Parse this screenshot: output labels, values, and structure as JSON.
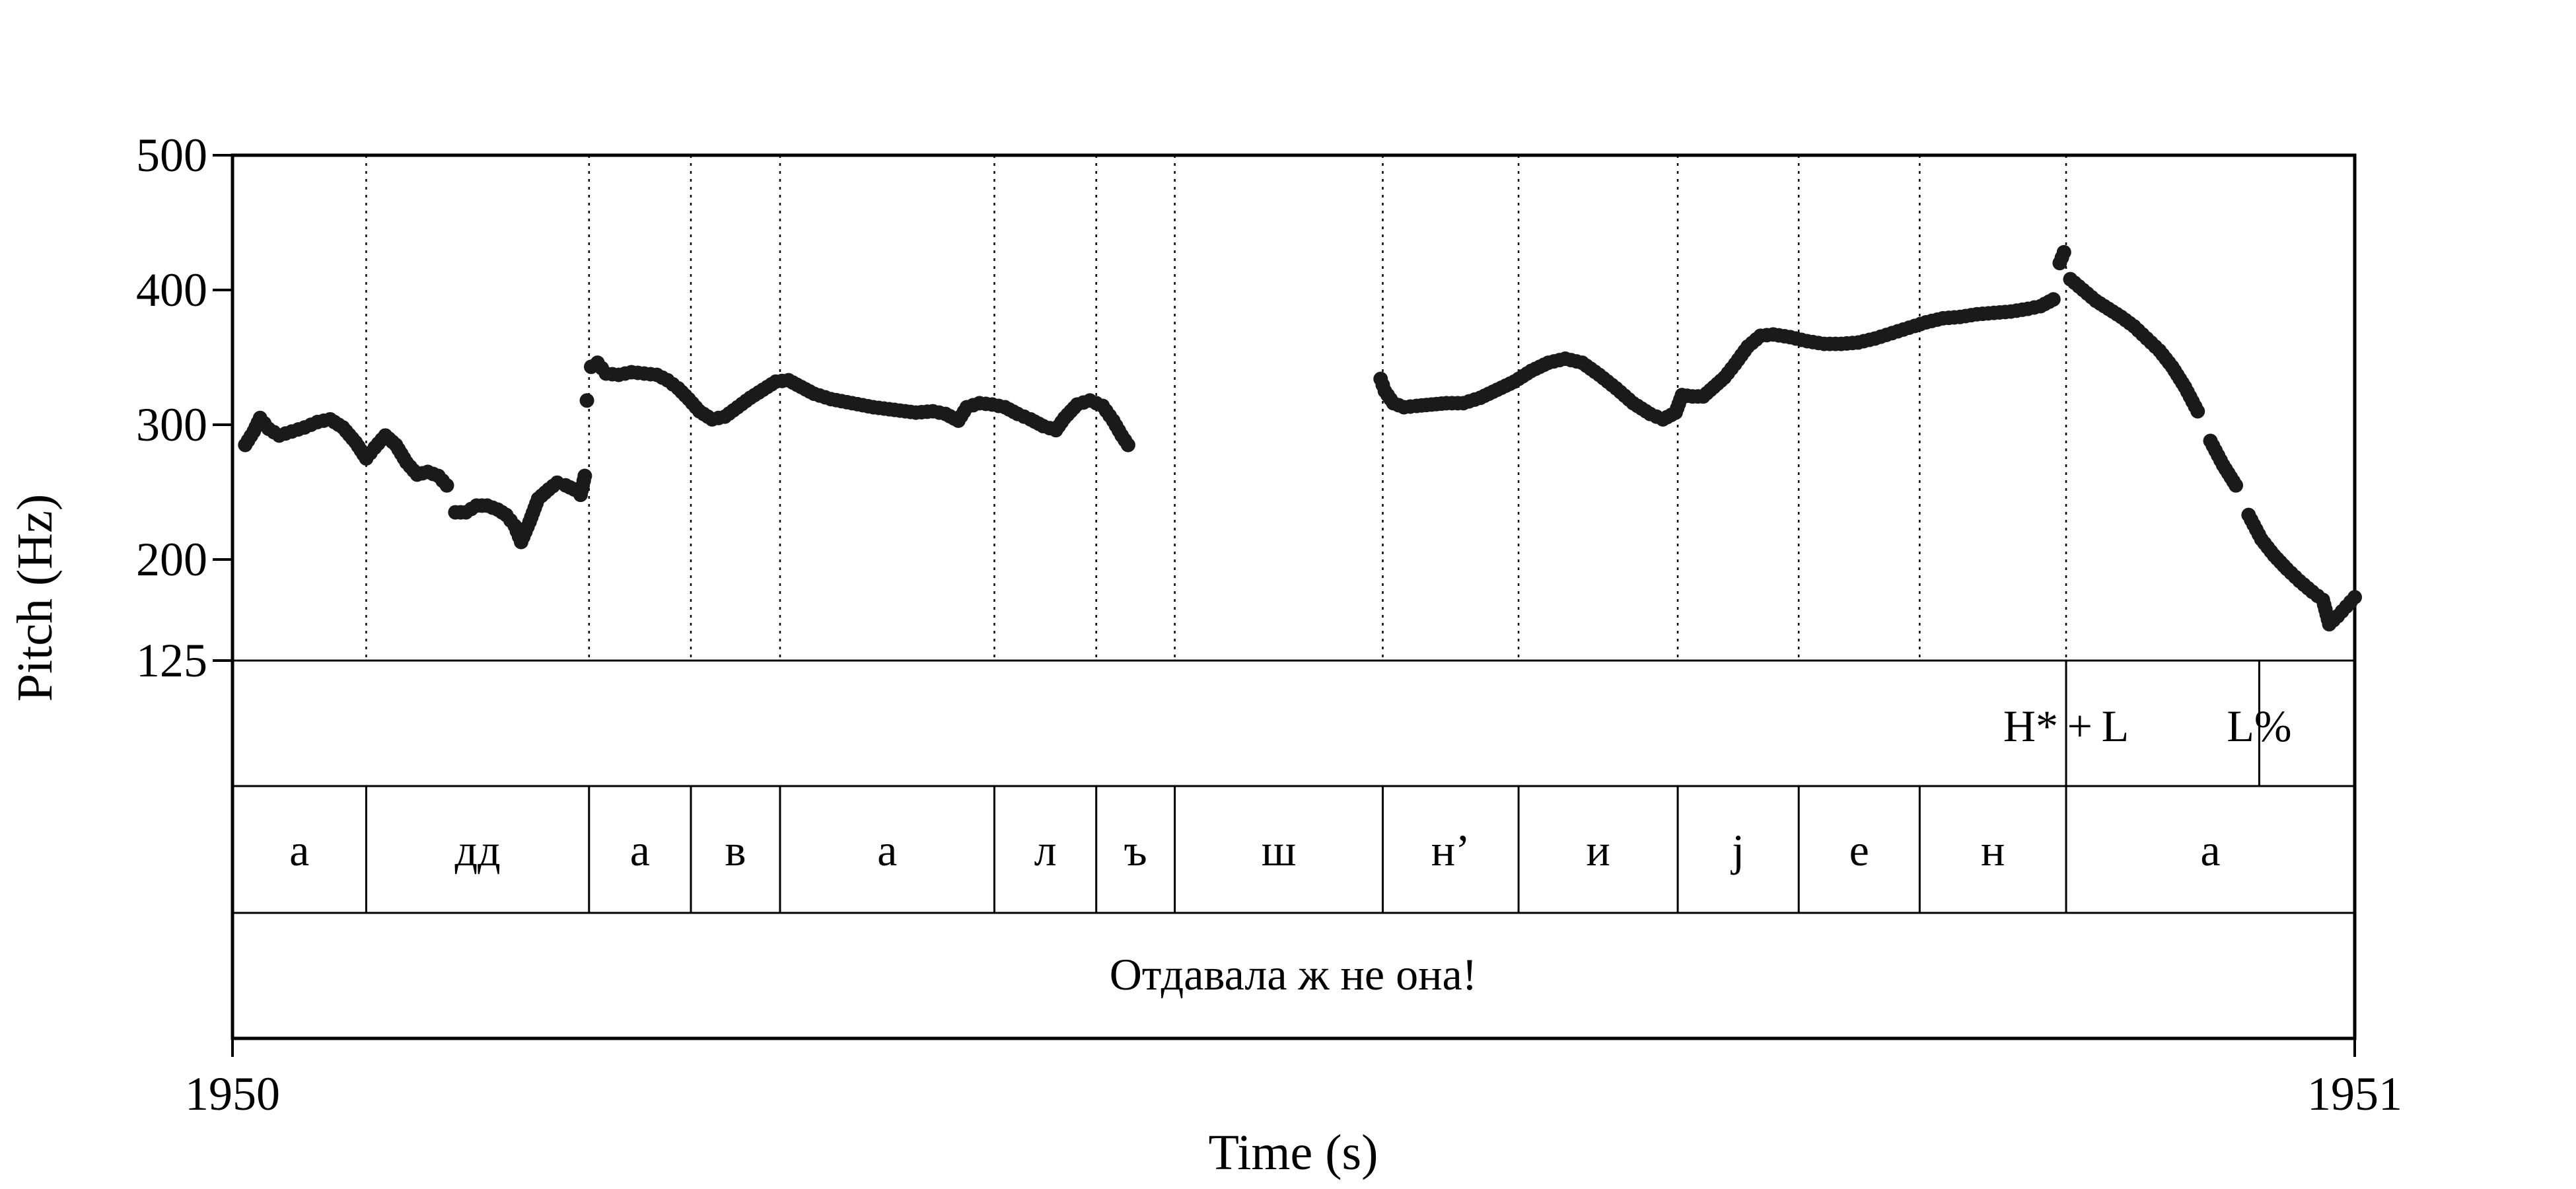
{
  "chart_data": {
    "type": "scatter",
    "xlabel": "Time (s)",
    "ylabel": "Pitch (Hz)",
    "xlim": [
      1950,
      1951
    ],
    "ylim": [
      125,
      500
    ],
    "x_tick_labels": [
      "1950",
      "1951"
    ],
    "y_tick_values": [
      125,
      200,
      300,
      400,
      500
    ],
    "y_tick_labels": [
      "125",
      "200",
      "300",
      "400",
      "500"
    ],
    "grid": "dotted vertical lines at segment boundaries",
    "tone_tier": [
      {
        "label": "H* + L",
        "t": 1950.864
      },
      {
        "label": "L%",
        "t": 1950.955
      }
    ],
    "segment_tier": [
      {
        "label": "а",
        "start": 1950.0,
        "end": 1950.063
      },
      {
        "label": "дд",
        "start": 1950.063,
        "end": 1950.168
      },
      {
        "label": "а",
        "start": 1950.168,
        "end": 1950.216
      },
      {
        "label": "в",
        "start": 1950.216,
        "end": 1950.258
      },
      {
        "label": "а",
        "start": 1950.258,
        "end": 1950.359
      },
      {
        "label": "л",
        "start": 1950.359,
        "end": 1950.407
      },
      {
        "label": "ъ",
        "start": 1950.407,
        "end": 1950.444
      },
      {
        "label": "ш",
        "start": 1950.444,
        "end": 1950.542
      },
      {
        "label": "н’",
        "start": 1950.542,
        "end": 1950.606
      },
      {
        "label": "и",
        "start": 1950.606,
        "end": 1950.681
      },
      {
        "label": "j",
        "start": 1950.681,
        "end": 1950.738
      },
      {
        "label": "е",
        "start": 1950.738,
        "end": 1950.795
      },
      {
        "label": "н",
        "start": 1950.795,
        "end": 1950.864
      },
      {
        "label": "а",
        "start": 1950.864,
        "end": 1951.0
      }
    ],
    "sentence_tier": "Отдавала ж не она!",
    "series": [
      {
        "points": [
          [
            1950.006,
            285
          ],
          [
            1950.01,
            295
          ],
          [
            1950.013,
            305
          ],
          [
            1950.017,
            297
          ],
          [
            1950.022,
            292
          ],
          [
            1950.028,
            295
          ],
          [
            1950.034,
            298
          ],
          [
            1950.04,
            302
          ],
          [
            1950.046,
            304
          ],
          [
            1950.052,
            298
          ],
          [
            1950.058,
            287
          ],
          [
            1950.063,
            275
          ],
          [
            1950.067,
            283
          ],
          [
            1950.072,
            292
          ],
          [
            1950.077,
            285
          ],
          [
            1950.082,
            272
          ],
          [
            1950.087,
            263
          ],
          [
            1950.092,
            265
          ],
          [
            1950.097,
            262
          ],
          [
            1950.101,
            255
          ],
          [
            1950.105,
            235
          ],
          [
            1950.11,
            235
          ],
          [
            1950.115,
            240
          ],
          [
            1950.12,
            240
          ],
          [
            1950.125,
            237
          ],
          [
            1950.129,
            233
          ],
          [
            1950.133,
            225
          ],
          [
            1950.136,
            213
          ],
          [
            1950.14,
            228
          ],
          [
            1950.144,
            245
          ],
          [
            1950.149,
            252
          ],
          [
            1950.153,
            257
          ],
          [
            1950.157,
            255
          ],
          [
            1950.161,
            252
          ],
          [
            1950.164,
            248
          ],
          [
            1950.166,
            262
          ],
          [
            1950.167,
            318
          ],
          [
            1950.169,
            343
          ],
          [
            1950.172,
            346
          ],
          [
            1950.176,
            338
          ],
          [
            1950.182,
            337
          ],
          [
            1950.188,
            339
          ],
          [
            1950.194,
            338
          ],
          [
            1950.2,
            337
          ],
          [
            1950.205,
            333
          ],
          [
            1950.21,
            327
          ],
          [
            1950.215,
            319
          ],
          [
            1950.22,
            310
          ],
          [
            1950.226,
            304
          ],
          [
            1950.232,
            306
          ],
          [
            1950.238,
            313
          ],
          [
            1950.244,
            320
          ],
          [
            1950.25,
            326
          ],
          [
            1950.256,
            332
          ],
          [
            1950.262,
            333
          ],
          [
            1950.268,
            328
          ],
          [
            1950.274,
            323
          ],
          [
            1950.282,
            319
          ],
          [
            1950.292,
            316
          ],
          [
            1950.302,
            313
          ],
          [
            1950.312,
            311
          ],
          [
            1950.322,
            309
          ],
          [
            1950.33,
            310
          ],
          [
            1950.336,
            308
          ],
          [
            1950.342,
            303
          ],
          [
            1950.346,
            313
          ],
          [
            1950.352,
            316
          ],
          [
            1950.358,
            315
          ],
          [
            1950.364,
            313
          ],
          [
            1950.37,
            308
          ],
          [
            1950.376,
            304
          ],
          [
            1950.382,
            299
          ],
          [
            1950.388,
            296
          ],
          [
            1950.392,
            305
          ],
          [
            1950.398,
            315
          ],
          [
            1950.404,
            318
          ],
          [
            1950.41,
            314
          ],
          [
            1950.415,
            303
          ],
          [
            1950.419,
            292
          ],
          [
            1950.422,
            285
          ],
          [
            1950.541,
            334
          ],
          [
            1950.543,
            325
          ],
          [
            1950.547,
            316
          ],
          [
            1950.552,
            313
          ],
          [
            1950.558,
            314
          ],
          [
            1950.565,
            315
          ],
          [
            1950.572,
            316
          ],
          [
            1950.58,
            316
          ],
          [
            1950.588,
            320
          ],
          [
            1950.596,
            326
          ],
          [
            1950.604,
            332
          ],
          [
            1950.612,
            340
          ],
          [
            1950.62,
            346
          ],
          [
            1950.628,
            349
          ],
          [
            1950.636,
            346
          ],
          [
            1950.644,
            337
          ],
          [
            1950.652,
            327
          ],
          [
            1950.66,
            316
          ],
          [
            1950.668,
            308
          ],
          [
            1950.674,
            304
          ],
          [
            1950.68,
            309
          ],
          [
            1950.683,
            322
          ],
          [
            1950.688,
            321
          ],
          [
            1950.693,
            321
          ],
          [
            1950.698,
            328
          ],
          [
            1950.703,
            335
          ],
          [
            1950.708,
            345
          ],
          [
            1950.714,
            358
          ],
          [
            1950.72,
            366
          ],
          [
            1950.726,
            367
          ],
          [
            1950.734,
            365
          ],
          [
            1950.742,
            362
          ],
          [
            1950.75,
            360
          ],
          [
            1950.758,
            360
          ],
          [
            1950.766,
            361
          ],
          [
            1950.774,
            364
          ],
          [
            1950.782,
            368
          ],
          [
            1950.79,
            372
          ],
          [
            1950.798,
            376
          ],
          [
            1950.806,
            379
          ],
          [
            1950.814,
            380
          ],
          [
            1950.822,
            382
          ],
          [
            1950.83,
            383
          ],
          [
            1950.838,
            384
          ],
          [
            1950.846,
            386
          ],
          [
            1950.852,
            388
          ],
          [
            1950.858,
            393
          ],
          [
            1950.861,
            420
          ],
          [
            1950.863,
            428
          ],
          [
            1950.866,
            408
          ],
          [
            1950.872,
            400
          ],
          [
            1950.878,
            392
          ],
          [
            1950.884,
            386
          ],
          [
            1950.89,
            380
          ],
          [
            1950.896,
            373
          ],
          [
            1950.902,
            364
          ],
          [
            1950.908,
            355
          ],
          [
            1950.914,
            343
          ],
          [
            1950.92,
            328
          ],
          [
            1950.926,
            310
          ],
          [
            1950.932,
            288
          ],
          [
            1950.938,
            270
          ],
          [
            1950.944,
            255
          ],
          [
            1950.95,
            233
          ],
          [
            1950.956,
            215
          ],
          [
            1950.962,
            203
          ],
          [
            1950.968,
            193
          ],
          [
            1950.974,
            184
          ],
          [
            1950.98,
            176
          ],
          [
            1950.985,
            170
          ],
          [
            1950.988,
            152
          ],
          [
            1950.992,
            158
          ],
          [
            1950.996,
            165
          ],
          [
            1951.0,
            172
          ]
        ]
      }
    ]
  }
}
